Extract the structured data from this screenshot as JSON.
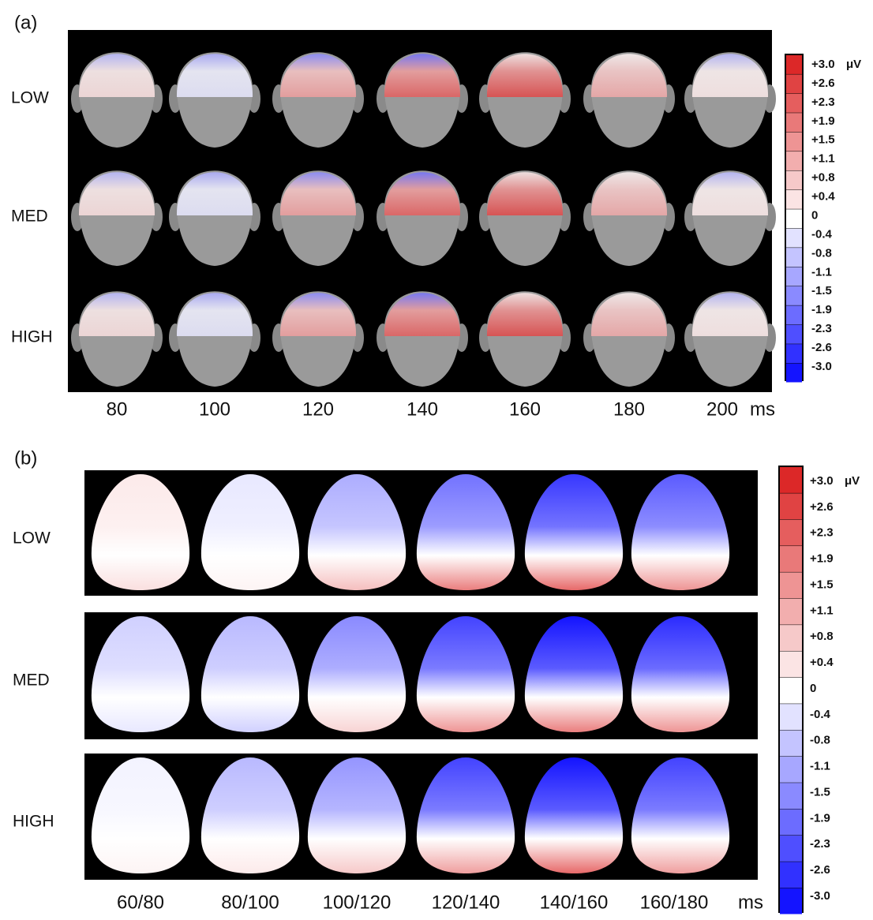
{
  "panels": [
    {
      "label": "(a)",
      "rows": [
        "LOW",
        "MED",
        "HIGH"
      ],
      "times": [
        "80",
        "100",
        "120",
        "140",
        "160",
        "180",
        "200"
      ],
      "unit": "ms",
      "scale": {
        "labels": [
          "+3.0",
          "+2.6",
          "+2.3",
          "+1.9",
          "+1.5",
          "+1.1",
          "+0.8",
          "+0.4",
          "0",
          "-0.4",
          "-0.8",
          "-1.1",
          "-1.5",
          "-1.9",
          "-2.3",
          "-2.6",
          "-3.0"
        ],
        "unit": "μV"
      }
    },
    {
      "label": "(b)",
      "rows": [
        "LOW",
        "MED",
        "HIGH"
      ],
      "times": [
        "60/80",
        "80/100",
        "100/120",
        "120/140",
        "140/160",
        "160/180"
      ],
      "unit": "ms",
      "scale": {
        "labels": [
          "+3.0",
          "+2.6",
          "+2.3",
          "+1.9",
          "+1.5",
          "+1.1",
          "+0.8",
          "+0.4",
          "0",
          "-0.4",
          "-0.8",
          "-1.1",
          "-1.5",
          "-1.9",
          "-2.3",
          "-2.6",
          "-3.0"
        ],
        "unit": "μV"
      }
    }
  ]
}
